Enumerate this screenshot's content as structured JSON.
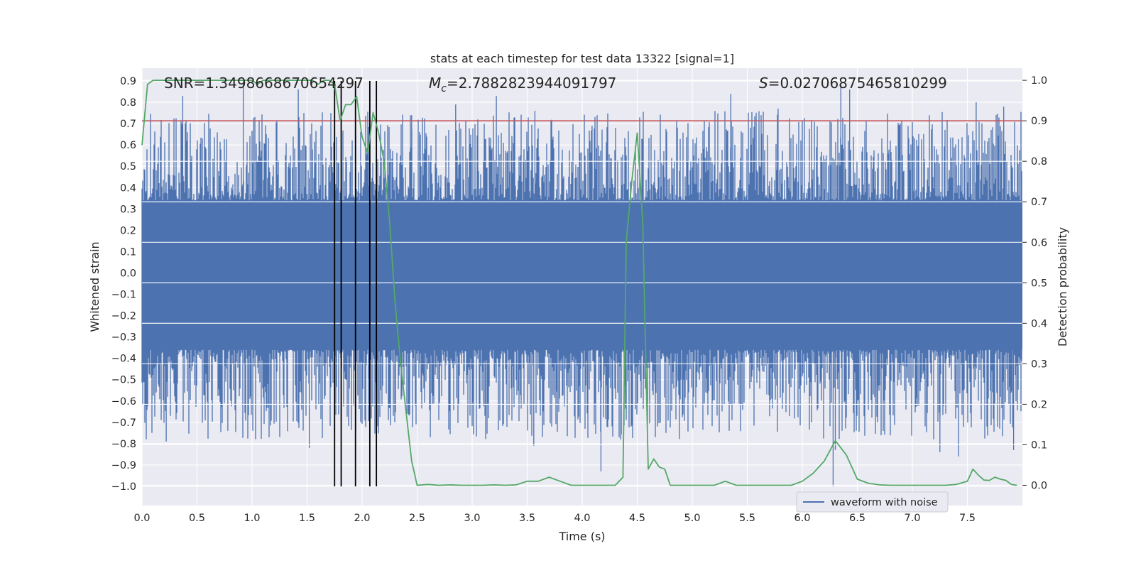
{
  "chart_data": {
    "type": "line",
    "title": "stats at each timestep for test data 13322 [signal=1]",
    "xlabel": "Time (s)",
    "ylabel_left": "Whitened strain",
    "ylabel_right": "Detection probability",
    "xlim": [
      0.0,
      8.0
    ],
    "ylim_left": [
      -1.09,
      0.96
    ],
    "ylim_right": [
      -0.05,
      1.03
    ],
    "x_ticks": [
      "0.0",
      "0.5",
      "1.0",
      "1.5",
      "2.0",
      "2.5",
      "3.0",
      "3.5",
      "4.0",
      "4.5",
      "5.0",
      "5.5",
      "6.0",
      "6.5",
      "7.0",
      "7.5"
    ],
    "y_ticks_left": [
      "0.9",
      "0.8",
      "0.7",
      "0.6",
      "0.5",
      "0.4",
      "0.3",
      "0.2",
      "0.1",
      "0.0",
      "−0.1",
      "−0.2",
      "−0.3",
      "−0.4",
      "−0.5",
      "−0.6",
      "−0.7",
      "−0.8",
      "−0.9",
      "−1.0"
    ],
    "y_ticks_right": [
      "1.0",
      "0.9",
      "0.8",
      "0.7",
      "0.6",
      "0.5",
      "0.4",
      "0.3",
      "0.2",
      "0.1",
      "0.0"
    ],
    "grid": true,
    "annotations": {
      "snr": "SNR=1.3498668670654297",
      "mc_symbol": "M",
      "mc_sub": "c",
      "mc_value": "=2.7882823944091797",
      "s_symbol": "S",
      "s_value": "=0.02706875465810299"
    },
    "legend": {
      "label": "waveform with noise",
      "position": "lower-right"
    },
    "threshold": {
      "value": 0.9,
      "axis": "right",
      "color": "#c44e52"
    },
    "vertical_markers": {
      "x": [
        1.75,
        1.81,
        1.94,
        2.07,
        2.13
      ],
      "y_range_left": [
        -1.0,
        0.9
      ],
      "color": "#000000"
    },
    "waveform": {
      "name": "waveform with noise",
      "color": "#4c72b0",
      "band": [
        -0.36,
        0.34
      ],
      "seed": 13322,
      "spikes": [
        {
          "x": 0.37,
          "y": 0.83
        },
        {
          "x": 0.92,
          "y": 0.89
        },
        {
          "x": 1.42,
          "y": 0.86
        },
        {
          "x": 2.45,
          "y": 0.74
        },
        {
          "x": 2.85,
          "y": 0.79
        },
        {
          "x": 3.22,
          "y": 0.83
        },
        {
          "x": 3.57,
          "y": 0.76
        },
        {
          "x": 4.09,
          "y": 0.69
        },
        {
          "x": 5.35,
          "y": 0.84
        },
        {
          "x": 5.78,
          "y": 0.77
        },
        {
          "x": 6.35,
          "y": 0.88
        },
        {
          "x": 6.43,
          "y": 0.86
        },
        {
          "x": 7.58,
          "y": 0.8
        },
        {
          "x": 7.83,
          "y": 0.78
        },
        {
          "x": 0.22,
          "y": -0.79
        },
        {
          "x": 0.78,
          "y": -0.74
        },
        {
          "x": 1.52,
          "y": -0.82
        },
        {
          "x": 2.62,
          "y": -0.77
        },
        {
          "x": 3.56,
          "y": -0.81
        },
        {
          "x": 4.17,
          "y": -0.93
        },
        {
          "x": 4.35,
          "y": -0.78
        },
        {
          "x": 6.28,
          "y": -1.0
        },
        {
          "x": 6.3,
          "y": -0.83
        },
        {
          "x": 7.25,
          "y": -0.84
        },
        {
          "x": 7.42,
          "y": -0.86
        },
        {
          "x": 7.92,
          "y": -0.83
        }
      ]
    },
    "detection_probability": {
      "name": "detection probability",
      "color": "#55a868",
      "x": [
        0.0,
        0.05,
        0.1,
        0.15,
        0.2,
        0.25,
        0.3,
        0.35,
        0.4,
        0.45,
        0.5,
        0.55,
        0.6,
        0.65,
        0.7,
        0.75,
        0.8,
        0.85,
        0.9,
        0.95,
        1.0,
        1.05,
        1.1,
        1.15,
        1.2,
        1.25,
        1.3,
        1.35,
        1.4,
        1.45,
        1.5,
        1.55,
        1.6,
        1.65,
        1.7,
        1.75,
        1.8,
        1.85,
        1.9,
        1.95,
        2.0,
        2.05,
        2.1,
        2.15,
        2.2,
        2.25,
        2.3,
        2.35,
        2.4,
        2.45,
        2.5,
        2.6,
        2.7,
        2.8,
        2.9,
        3.0,
        3.1,
        3.2,
        3.3,
        3.4,
        3.5,
        3.6,
        3.7,
        3.8,
        3.9,
        4.0,
        4.1,
        4.2,
        4.3,
        4.37,
        4.4,
        4.45,
        4.5,
        4.55,
        4.6,
        4.65,
        4.7,
        4.75,
        4.8,
        4.9,
        5.0,
        5.1,
        5.2,
        5.3,
        5.4,
        5.5,
        5.6,
        5.7,
        5.8,
        5.9,
        6.0,
        6.1,
        6.2,
        6.3,
        6.4,
        6.5,
        6.6,
        6.7,
        6.8,
        6.9,
        7.0,
        7.1,
        7.2,
        7.3,
        7.4,
        7.5,
        7.55,
        7.6,
        7.65,
        7.7,
        7.75,
        7.8,
        7.85,
        7.9,
        7.95
      ],
      "y": [
        0.84,
        0.99,
        1.0,
        1.0,
        1.0,
        1.0,
        1.0,
        1.0,
        1.0,
        1.0,
        1.0,
        1.0,
        1.0,
        1.0,
        1.0,
        1.0,
        1.0,
        1.0,
        1.0,
        1.0,
        1.0,
        0.99,
        1.0,
        1.0,
        1.0,
        1.0,
        1.0,
        1.0,
        1.0,
        1.0,
        1.0,
        1.0,
        0.99,
        1.0,
        1.0,
        0.99,
        0.9,
        0.94,
        0.94,
        0.96,
        0.86,
        0.82,
        0.92,
        0.87,
        0.8,
        0.65,
        0.45,
        0.3,
        0.18,
        0.06,
        0.0,
        0.002,
        0.0,
        0.001,
        0.0,
        0.0,
        0.0,
        0.001,
        0.0,
        0.001,
        0.01,
        0.01,
        0.02,
        0.01,
        0.0,
        0.0,
        0.0,
        0.0,
        0.0,
        0.02,
        0.6,
        0.75,
        0.87,
        0.65,
        0.04,
        0.065,
        0.045,
        0.04,
        0.0,
        0.0,
        0.0,
        0.0,
        0.0,
        0.01,
        0.0,
        0.0,
        0.0,
        0.0,
        0.0,
        0.0,
        0.01,
        0.03,
        0.06,
        0.11,
        0.075,
        0.015,
        0.005,
        0.001,
        0.0,
        0.0,
        0.0,
        0.0,
        0.0,
        0.0,
        0.002,
        0.01,
        0.04,
        0.025,
        0.013,
        0.012,
        0.02,
        0.015,
        0.012,
        0.002,
        0.0
      ]
    }
  }
}
